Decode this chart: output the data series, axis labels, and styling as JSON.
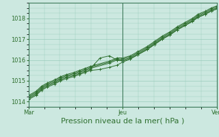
{
  "background_color": "#cce8e0",
  "plot_bg_color": "#cce8e0",
  "grid_color": "#99ccbb",
  "line_color": "#2d6e2d",
  "marker_color": "#2d6e2d",
  "xlabel": "Pression niveau de la mer( hPa )",
  "xtick_labels": [
    "Mar",
    "Jeu",
    "Ven"
  ],
  "xtick_positions": [
    0,
    0.5,
    1.0
  ],
  "ylim": [
    1013.75,
    1018.75
  ],
  "yticks": [
    1014,
    1015,
    1016,
    1017,
    1018
  ],
  "xlim": [
    0,
    1.0
  ],
  "series": [
    {
      "x": [
        0.0,
        0.04,
        0.07,
        0.1,
        0.14,
        0.17,
        0.2,
        0.24,
        0.27,
        0.3,
        0.33,
        0.38,
        0.43,
        0.47,
        0.5,
        0.54,
        0.58,
        0.63,
        0.67,
        0.71,
        0.75,
        0.79,
        0.83,
        0.87,
        0.9,
        0.94,
        0.97,
        1.0
      ],
      "y": [
        1014.1,
        1014.3,
        1014.55,
        1014.7,
        1014.85,
        1015.0,
        1015.1,
        1015.2,
        1015.3,
        1015.4,
        1015.5,
        1015.55,
        1015.65,
        1015.75,
        1015.9,
        1016.05,
        1016.25,
        1016.5,
        1016.75,
        1017.0,
        1017.2,
        1017.45,
        1017.65,
        1017.85,
        1018.05,
        1018.2,
        1018.35,
        1018.45
      ]
    },
    {
      "x": [
        0.0,
        0.04,
        0.07,
        0.1,
        0.14,
        0.17,
        0.2,
        0.24,
        0.27,
        0.3,
        0.33,
        0.35,
        0.38,
        0.43,
        0.47,
        0.5,
        0.54,
        0.58,
        0.63,
        0.67,
        0.71,
        0.75,
        0.79,
        0.83,
        0.87,
        0.9,
        0.94,
        0.97,
        1.0
      ],
      "y": [
        1014.15,
        1014.35,
        1014.6,
        1014.75,
        1014.9,
        1015.05,
        1015.15,
        1015.25,
        1015.35,
        1015.45,
        1015.55,
        1015.8,
        1016.1,
        1016.2,
        1016.0,
        1015.95,
        1016.05,
        1016.25,
        1016.5,
        1016.75,
        1017.0,
        1017.2,
        1017.45,
        1017.65,
        1017.85,
        1018.05,
        1018.2,
        1018.35,
        1018.45
      ]
    },
    {
      "x": [
        0.0,
        0.04,
        0.07,
        0.1,
        0.14,
        0.17,
        0.2,
        0.24,
        0.27,
        0.3,
        0.33,
        0.43,
        0.47,
        0.5,
        0.54,
        0.58,
        0.63,
        0.67,
        0.71,
        0.75,
        0.79,
        0.83,
        0.87,
        0.9,
        0.94,
        0.97,
        1.0
      ],
      "y": [
        1014.2,
        1014.4,
        1014.65,
        1014.8,
        1014.95,
        1015.1,
        1015.2,
        1015.3,
        1015.4,
        1015.5,
        1015.6,
        1015.85,
        1016.0,
        1016.0,
        1016.1,
        1016.3,
        1016.55,
        1016.8,
        1017.05,
        1017.25,
        1017.5,
        1017.7,
        1017.9,
        1018.1,
        1018.25,
        1018.4,
        1018.5
      ]
    },
    {
      "x": [
        0.0,
        0.04,
        0.07,
        0.1,
        0.14,
        0.17,
        0.2,
        0.24,
        0.27,
        0.3,
        0.33,
        0.43,
        0.47,
        0.5,
        0.54,
        0.58,
        0.63,
        0.67,
        0.71,
        0.75,
        0.79,
        0.83,
        0.87,
        0.9,
        0.94,
        0.97,
        1.0
      ],
      "y": [
        1014.25,
        1014.45,
        1014.7,
        1014.85,
        1015.0,
        1015.15,
        1015.25,
        1015.35,
        1015.45,
        1015.55,
        1015.65,
        1015.9,
        1016.05,
        1016.05,
        1016.15,
        1016.35,
        1016.6,
        1016.85,
        1017.1,
        1017.3,
        1017.55,
        1017.75,
        1017.95,
        1018.15,
        1018.3,
        1018.45,
        1018.55
      ]
    },
    {
      "x": [
        0.0,
        0.04,
        0.07,
        0.1,
        0.14,
        0.17,
        0.2,
        0.24,
        0.27,
        0.3,
        0.33,
        0.43,
        0.47,
        0.5,
        0.54,
        0.58,
        0.63,
        0.67,
        0.71,
        0.75,
        0.79,
        0.83,
        0.87,
        0.9,
        0.94,
        0.97,
        1.0
      ],
      "y": [
        1014.3,
        1014.5,
        1014.75,
        1014.9,
        1015.05,
        1015.2,
        1015.3,
        1015.4,
        1015.5,
        1015.6,
        1015.7,
        1015.95,
        1016.1,
        1016.1,
        1016.2,
        1016.4,
        1016.65,
        1016.9,
        1017.15,
        1017.35,
        1017.6,
        1017.8,
        1018.0,
        1018.2,
        1018.35,
        1018.5,
        1018.6
      ]
    }
  ],
  "vline_positions": [
    0.0,
    0.5,
    1.0
  ],
  "xlabel_fontsize": 8,
  "tick_fontsize": 6
}
